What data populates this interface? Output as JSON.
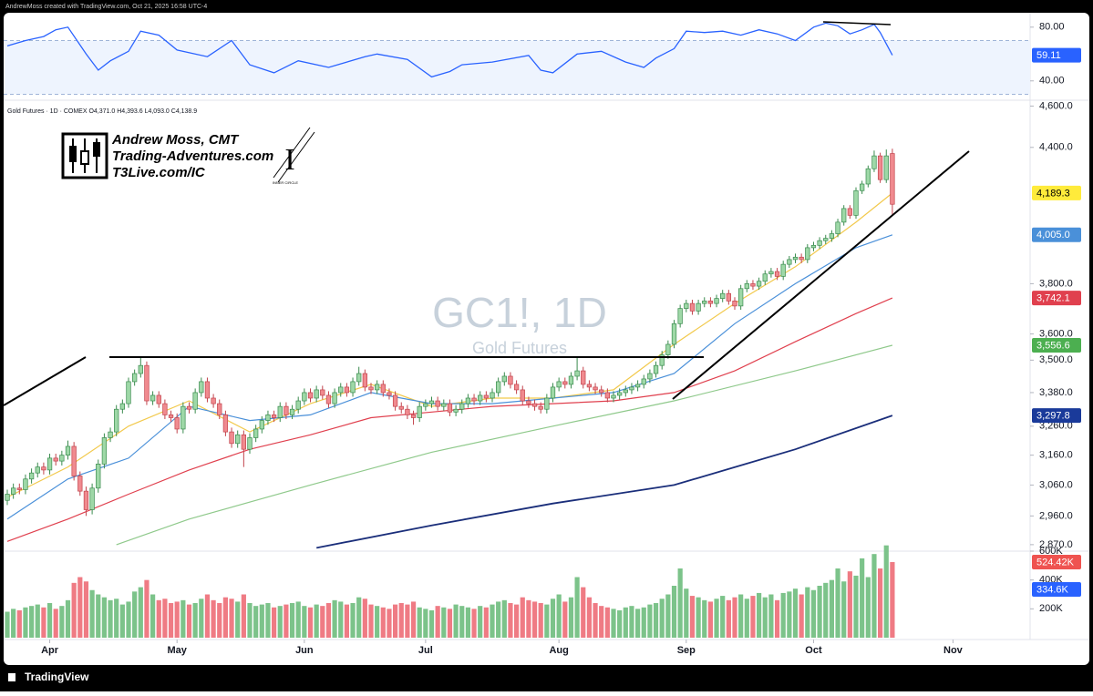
{
  "chart_data": {
    "type": "candlestick",
    "header": "AndrewMoss created with TradingView.com, Oct 21, 2025 16:58 UTC-4",
    "legend_text": "Gold Futures · 1D · COMEX  O4,371.0  H4,393.6  L4,093.0  C4,138.9",
    "watermark_symbol": "GC1!, 1D",
    "watermark_name": "Gold Futures",
    "logo": {
      "name": "Andrew Moss, CMT",
      "site": "Trading-Adventures.com",
      "site2": "T3Live.com/IC",
      "badge": "INNER CIRCLE"
    },
    "footer": "TradingView",
    "log_scale": true,
    "ylim": [
      2850,
      4620
    ],
    "yticks": [
      {
        "value": 4600,
        "label": "4,600.0"
      },
      {
        "value": 4400,
        "label": "4,400.0"
      },
      {
        "value": 3800,
        "label": "3,800.0"
      },
      {
        "value": 3600,
        "label": "3,600.0"
      },
      {
        "value": 3500,
        "label": "3,500.0"
      },
      {
        "value": 3380,
        "label": "3,380.0"
      },
      {
        "value": 3260,
        "label": "3,260.0"
      },
      {
        "value": 3160,
        "label": "3,160.0"
      },
      {
        "value": 3060,
        "label": "3,060.0"
      },
      {
        "value": 2960,
        "label": "2,960.0"
      },
      {
        "value": 2870,
        "label": "2,870.0"
      }
    ],
    "xlim": [
      -1,
      172
    ],
    "xticks": [
      {
        "value": 7,
        "label": "Apr"
      },
      {
        "value": 28,
        "label": "May"
      },
      {
        "value": 49,
        "label": "Jun"
      },
      {
        "value": 69,
        "label": "Jul"
      },
      {
        "value": 91,
        "label": "Aug"
      },
      {
        "value": 112,
        "label": "Sep"
      },
      {
        "value": 133,
        "label": "Oct"
      },
      {
        "value": 156,
        "label": "Nov"
      }
    ],
    "up_color": "#9ed8a7",
    "down_color": "#f08a8f",
    "candles": [
      [
        3010,
        3045,
        2995,
        3030
      ],
      [
        3030,
        3065,
        3015,
        3050
      ],
      [
        3050,
        3065,
        3030,
        3045
      ],
      [
        3045,
        3095,
        3030,
        3080
      ],
      [
        3080,
        3115,
        3065,
        3100
      ],
      [
        3100,
        3135,
        3085,
        3120
      ],
      [
        3120,
        3135,
        3095,
        3110
      ],
      [
        3110,
        3165,
        3095,
        3150
      ],
      [
        3150,
        3165,
        3125,
        3140
      ],
      [
        3140,
        3175,
        3125,
        3160
      ],
      [
        3160,
        3210,
        3145,
        3190
      ],
      [
        3190,
        3205,
        3075,
        3090
      ],
      [
        3090,
        3105,
        3025,
        3040
      ],
      [
        3040,
        3055,
        2960,
        2980
      ],
      [
        2980,
        3065,
        2965,
        3050
      ],
      [
        3050,
        3145,
        3035,
        3130
      ],
      [
        3130,
        3235,
        3115,
        3220
      ],
      [
        3220,
        3255,
        3205,
        3240
      ],
      [
        3240,
        3335,
        3225,
        3320
      ],
      [
        3320,
        3355,
        3305,
        3340
      ],
      [
        3340,
        3435,
        3325,
        3420
      ],
      [
        3420,
        3465,
        3405,
        3450
      ],
      [
        3450,
        3510,
        3435,
        3480
      ],
      [
        3480,
        3495,
        3335,
        3350
      ],
      [
        3350,
        3385,
        3335,
        3370
      ],
      [
        3370,
        3385,
        3325,
        3340
      ],
      [
        3340,
        3355,
        3285,
        3300
      ],
      [
        3300,
        3315,
        3275,
        3290
      ],
      [
        3290,
        3305,
        3235,
        3250
      ],
      [
        3250,
        3345,
        3235,
        3330
      ],
      [
        3330,
        3345,
        3305,
        3320
      ],
      [
        3320,
        3395,
        3305,
        3380
      ],
      [
        3380,
        3435,
        3365,
        3420
      ],
      [
        3420,
        3435,
        3345,
        3360
      ],
      [
        3360,
        3375,
        3325,
        3340
      ],
      [
        3340,
        3355,
        3285,
        3300
      ],
      [
        3300,
        3315,
        3225,
        3240
      ],
      [
        3240,
        3255,
        3185,
        3200
      ],
      [
        3200,
        3245,
        3185,
        3230
      ],
      [
        3230,
        3245,
        3120,
        3180
      ],
      [
        3180,
        3235,
        3165,
        3220
      ],
      [
        3220,
        3265,
        3205,
        3250
      ],
      [
        3250,
        3295,
        3235,
        3280
      ],
      [
        3280,
        3315,
        3265,
        3300
      ],
      [
        3300,
        3315,
        3275,
        3290
      ],
      [
        3290,
        3345,
        3275,
        3330
      ],
      [
        3330,
        3345,
        3285,
        3300
      ],
      [
        3300,
        3335,
        3285,
        3320
      ],
      [
        3320,
        3365,
        3305,
        3350
      ],
      [
        3350,
        3395,
        3335,
        3380
      ],
      [
        3380,
        3395,
        3345,
        3360
      ],
      [
        3360,
        3405,
        3345,
        3390
      ],
      [
        3390,
        3405,
        3355,
        3370
      ],
      [
        3370,
        3385,
        3325,
        3340
      ],
      [
        3340,
        3395,
        3325,
        3380
      ],
      [
        3380,
        3415,
        3365,
        3400
      ],
      [
        3400,
        3415,
        3365,
        3380
      ],
      [
        3380,
        3435,
        3365,
        3420
      ],
      [
        3420,
        3475,
        3405,
        3450
      ],
      [
        3450,
        3465,
        3385,
        3400
      ],
      [
        3400,
        3415,
        3375,
        3390
      ],
      [
        3390,
        3425,
        3375,
        3410
      ],
      [
        3410,
        3425,
        3365,
        3380
      ],
      [
        3380,
        3395,
        3355,
        3370
      ],
      [
        3370,
        3385,
        3315,
        3330
      ],
      [
        3330,
        3345,
        3305,
        3320
      ],
      [
        3320,
        3335,
        3285,
        3300
      ],
      [
        3300,
        3315,
        3265,
        3290
      ],
      [
        3290,
        3345,
        3275,
        3330
      ],
      [
        3330,
        3355,
        3315,
        3340
      ],
      [
        3340,
        3365,
        3325,
        3350
      ],
      [
        3350,
        3365,
        3315,
        3330
      ],
      [
        3330,
        3355,
        3315,
        3340
      ],
      [
        3340,
        3355,
        3295,
        3310
      ],
      [
        3310,
        3335,
        3295,
        3320
      ],
      [
        3320,
        3355,
        3305,
        3340
      ],
      [
        3340,
        3375,
        3325,
        3360
      ],
      [
        3360,
        3375,
        3335,
        3350
      ],
      [
        3350,
        3385,
        3335,
        3370
      ],
      [
        3370,
        3385,
        3345,
        3360
      ],
      [
        3360,
        3395,
        3345,
        3380
      ],
      [
        3380,
        3435,
        3365,
        3420
      ],
      [
        3420,
        3455,
        3405,
        3440
      ],
      [
        3440,
        3455,
        3395,
        3410
      ],
      [
        3410,
        3425,
        3375,
        3390
      ],
      [
        3390,
        3405,
        3335,
        3350
      ],
      [
        3350,
        3365,
        3325,
        3340
      ],
      [
        3340,
        3355,
        3315,
        3330
      ],
      [
        3330,
        3345,
        3305,
        3320
      ],
      [
        3320,
        3375,
        3305,
        3360
      ],
      [
        3360,
        3415,
        3345,
        3400
      ],
      [
        3400,
        3435,
        3385,
        3420
      ],
      [
        3420,
        3435,
        3395,
        3410
      ],
      [
        3410,
        3455,
        3395,
        3440
      ],
      [
        3440,
        3515,
        3425,
        3460
      ],
      [
        3460,
        3475,
        3395,
        3410
      ],
      [
        3410,
        3425,
        3385,
        3400
      ],
      [
        3400,
        3415,
        3375,
        3390
      ],
      [
        3390,
        3405,
        3365,
        3380
      ],
      [
        3380,
        3395,
        3345,
        3360
      ],
      [
        3360,
        3385,
        3345,
        3370
      ],
      [
        3370,
        3395,
        3355,
        3380
      ],
      [
        3380,
        3405,
        3365,
        3390
      ],
      [
        3390,
        3415,
        3375,
        3400
      ],
      [
        3400,
        3425,
        3385,
        3410
      ],
      [
        3410,
        3445,
        3395,
        3430
      ],
      [
        3430,
        3465,
        3415,
        3450
      ],
      [
        3450,
        3495,
        3435,
        3480
      ],
      [
        3480,
        3535,
        3465,
        3520
      ],
      [
        3520,
        3575,
        3505,
        3560
      ],
      [
        3560,
        3655,
        3545,
        3640
      ],
      [
        3640,
        3715,
        3625,
        3700
      ],
      [
        3700,
        3735,
        3685,
        3720
      ],
      [
        3720,
        3735,
        3675,
        3690
      ],
      [
        3690,
        3735,
        3675,
        3720
      ],
      [
        3720,
        3745,
        3705,
        3730
      ],
      [
        3730,
        3745,
        3705,
        3720
      ],
      [
        3720,
        3755,
        3705,
        3740
      ],
      [
        3740,
        3775,
        3725,
        3760
      ],
      [
        3760,
        3775,
        3715,
        3730
      ],
      [
        3730,
        3745,
        3695,
        3710
      ],
      [
        3710,
        3795,
        3695,
        3780
      ],
      [
        3780,
        3815,
        3765,
        3800
      ],
      [
        3800,
        3815,
        3775,
        3790
      ],
      [
        3790,
        3825,
        3775,
        3810
      ],
      [
        3810,
        3855,
        3795,
        3840
      ],
      [
        3840,
        3865,
        3825,
        3850
      ],
      [
        3850,
        3865,
        3815,
        3830
      ],
      [
        3830,
        3895,
        3815,
        3880
      ],
      [
        3880,
        3915,
        3865,
        3900
      ],
      [
        3900,
        3925,
        3885,
        3910
      ],
      [
        3910,
        3925,
        3885,
        3900
      ],
      [
        3900,
        3965,
        3885,
        3950
      ],
      [
        3950,
        3975,
        3935,
        3960
      ],
      [
        3960,
        3995,
        3945,
        3980
      ],
      [
        3980,
        4005,
        3965,
        3990
      ],
      [
        3990,
        4025,
        3975,
        4010
      ],
      [
        4010,
        4075,
        3995,
        4060
      ],
      [
        4060,
        4135,
        4045,
        4120
      ],
      [
        4120,
        4135,
        4075,
        4090
      ],
      [
        4090,
        4215,
        4075,
        4200
      ],
      [
        4200,
        4245,
        4185,
        4230
      ],
      [
        4230,
        4315,
        4215,
        4300
      ],
      [
        4300,
        4385,
        4285,
        4360
      ],
      [
        4360,
        4375,
        4235,
        4250
      ],
      [
        4250,
        4390,
        4235,
        4360
      ],
      [
        4371,
        4393.6,
        4093,
        4138.9
      ]
    ],
    "moving_averages": [
      {
        "color": "#f2c94c",
        "x": [
          0,
          10,
          20,
          30,
          40,
          50,
          60,
          70,
          80,
          90,
          100,
          110,
          120,
          130,
          140,
          146
        ],
        "values": [
          3020,
          3120,
          3260,
          3350,
          3240,
          3340,
          3410,
          3330,
          3360,
          3360,
          3390,
          3560,
          3720,
          3870,
          4060,
          4189.3
        ],
        "last_label": "4,189.3",
        "label_color": "#ffeb3b"
      },
      {
        "color": "#4a90d9",
        "x": [
          0,
          10,
          20,
          30,
          40,
          50,
          60,
          70,
          80,
          90,
          100,
          110,
          120,
          130,
          140,
          146
        ],
        "values": [
          2950,
          3080,
          3150,
          3330,
          3280,
          3300,
          3380,
          3340,
          3340,
          3360,
          3380,
          3450,
          3640,
          3800,
          3950,
          4005
        ],
        "last_label": "4,005.0",
        "label_color": "#4a90d9"
      },
      {
        "color": "#e0404e",
        "x": [
          0,
          10,
          20,
          30,
          40,
          50,
          60,
          70,
          80,
          90,
          100,
          110,
          120,
          130,
          140,
          146
        ],
        "values": [
          2880,
          2950,
          3030,
          3110,
          3180,
          3230,
          3290,
          3310,
          3330,
          3340,
          3350,
          3380,
          3460,
          3570,
          3680,
          3742.1
        ],
        "last_label": "3,742.1",
        "label_color": "#e0404e"
      },
      {
        "color": "#8fc98b",
        "x": [
          18,
          30,
          50,
          70,
          90,
          110,
          130,
          146
        ],
        "values": [
          2870,
          2950,
          3060,
          3170,
          3260,
          3350,
          3460,
          3556.6
        ],
        "last_label": "3,556.6",
        "label_color": "#4caf50"
      },
      {
        "color": "#1a2e7a",
        "x": [
          51,
          70,
          90,
          110,
          130,
          146
        ],
        "values": [
          2860,
          2930,
          3000,
          3060,
          3180,
          3297.8
        ],
        "last_label": "3,297.8",
        "label_color": "#1a3a9a"
      }
    ],
    "volume": {
      "ylim": [
        0,
        600
      ],
      "yticks": [
        {
          "value": 600,
          "label": "600K"
        },
        {
          "value": 400,
          "label": "400K"
        },
        {
          "value": 200,
          "label": "200K"
        }
      ],
      "values": [
        180,
        200,
        190,
        210,
        220,
        230,
        210,
        240,
        200,
        220,
        260,
        380,
        420,
        390,
        330,
        300,
        280,
        260,
        270,
        230,
        250,
        320,
        350,
        400,
        300,
        260,
        270,
        240,
        250,
        260,
        230,
        240,
        270,
        300,
        260,
        240,
        280,
        270,
        250,
        300,
        240,
        220,
        230,
        240,
        210,
        220,
        230,
        240,
        250,
        220,
        210,
        230,
        220,
        240,
        260,
        250,
        230,
        240,
        280,
        270,
        230,
        220,
        210,
        200,
        230,
        240,
        230,
        250,
        210,
        200,
        190,
        220,
        210,
        200,
        230,
        220,
        210,
        200,
        220,
        210,
        230,
        250,
        260,
        240,
        230,
        280,
        260,
        250,
        240,
        230,
        270,
        300,
        250,
        280,
        420,
        350,
        280,
        240,
        220,
        210,
        200,
        190,
        210,
        220,
        200,
        210,
        230,
        240,
        270,
        300,
        360,
        480,
        340,
        290,
        280,
        260,
        250,
        270,
        290,
        260,
        280,
        300,
        270,
        290,
        310,
        280,
        300,
        260,
        310,
        320,
        340,
        300,
        350,
        330,
        360,
        380,
        400,
        480,
        390,
        460,
        430,
        550,
        420,
        580,
        480,
        640,
        524.42
      ],
      "last_label": "524.42K",
      "ma": {
        "value": 334.6,
        "label": "334.6K",
        "color": "#2962ff"
      }
    },
    "rsi": {
      "ylim": [
        29,
        88
      ],
      "yticks": [
        {
          "value": 80,
          "label": "80.00"
        },
        {
          "value": 40,
          "label": "40.00"
        }
      ],
      "band": [
        30,
        70
      ],
      "color": "#2962ff",
      "x": [
        0,
        3,
        6,
        8,
        10,
        13,
        15,
        17,
        20,
        22,
        25,
        28,
        33,
        37,
        40,
        44,
        48,
        53,
        59,
        61,
        66,
        70,
        73,
        75,
        80,
        86,
        88,
        90,
        94,
        98,
        102,
        105,
        107,
        110,
        112,
        115,
        118,
        121,
        124,
        127,
        130,
        133,
        135,
        137,
        139,
        141,
        143,
        144,
        146
      ],
      "values": [
        66,
        70,
        73,
        78,
        80,
        60,
        48,
        55,
        62,
        77,
        74,
        63,
        58,
        70,
        52,
        46,
        55,
        50,
        58,
        60,
        56,
        43,
        47,
        52,
        54,
        59,
        48,
        46,
        60,
        62,
        54,
        50,
        57,
        64,
        77,
        76,
        77,
        74,
        78,
        75,
        70,
        80,
        83,
        81,
        75,
        78,
        82,
        76,
        59.11
      ]
    }
  }
}
